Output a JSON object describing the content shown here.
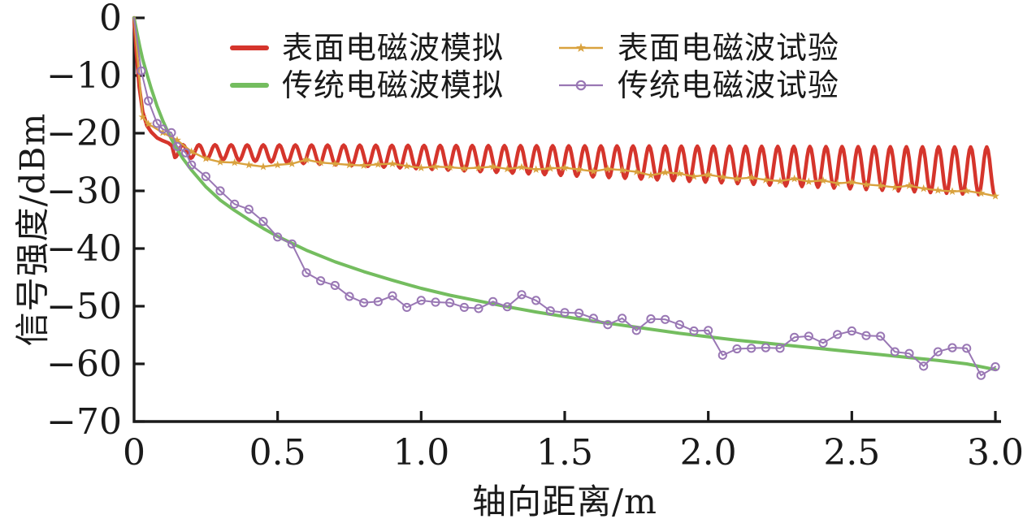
{
  "chart_data": {
    "type": "line",
    "title": "",
    "xlabel": "轴向距离/m",
    "ylabel": "信号强度/dBm",
    "xlim": [
      0,
      3.0
    ],
    "ylim": [
      -70,
      0
    ],
    "grid": false,
    "legend_position": "top-inside",
    "x_ticks": [
      "0",
      "0.5",
      "1.0",
      "1.5",
      "2.0",
      "2.5",
      "3.0"
    ],
    "x_tick_values": [
      0,
      0.5,
      1.0,
      1.5,
      2.0,
      2.5,
      3.0
    ],
    "y_ticks": [
      "0",
      "−10",
      "−20",
      "−30",
      "−40",
      "−50",
      "−60",
      "−70"
    ],
    "y_tick_values": [
      0,
      -10,
      -20,
      -30,
      -40,
      -50,
      -60,
      -70
    ],
    "axis_color": "#1a1a1a",
    "text_color": "#1a1a1a",
    "series": [
      {
        "name": "表面电磁波模拟",
        "color": "#d5352c",
        "type": "wave-line",
        "line_width": 4.5,
        "lead_in": [
          [
            0,
            0
          ],
          [
            0.008,
            -6
          ],
          [
            0.018,
            -12
          ],
          [
            0.03,
            -16.3
          ],
          [
            0.045,
            -18.7
          ],
          [
            0.06,
            -19.8
          ],
          [
            0.08,
            -20.8
          ],
          [
            0.1,
            -21.3
          ],
          [
            0.12,
            -21.7
          ],
          [
            0.132,
            -22.2
          ]
        ],
        "wave": {
          "x_start": 0.142,
          "x_end": 3.0,
          "period": 0.056,
          "first_peak_x": 0.17,
          "peak_start": -22.0,
          "peak_end": -22.4,
          "trough_start": -24.2,
          "trough_end": -30.8
        }
      },
      {
        "name": "传统电磁波模拟",
        "color": "#74bd5f",
        "type": "line",
        "line_width": 4,
        "points": [
          [
            0,
            0
          ],
          [
            0.01,
            -2.5
          ],
          [
            0.02,
            -5.0
          ],
          [
            0.03,
            -7.2
          ],
          [
            0.045,
            -9.8
          ],
          [
            0.06,
            -12.3
          ],
          [
            0.08,
            -15.3
          ],
          [
            0.1,
            -17.8
          ],
          [
            0.12,
            -20.0
          ],
          [
            0.14,
            -22.0
          ],
          [
            0.17,
            -24.4
          ],
          [
            0.2,
            -26.4
          ],
          [
            0.25,
            -29.3
          ],
          [
            0.3,
            -31.6
          ],
          [
            0.35,
            -33.4
          ],
          [
            0.4,
            -35.0
          ],
          [
            0.45,
            -36.5
          ],
          [
            0.5,
            -37.9
          ],
          [
            0.55,
            -39.1
          ],
          [
            0.6,
            -40.3
          ],
          [
            0.7,
            -42.3
          ],
          [
            0.8,
            -44.0
          ],
          [
            0.9,
            -45.5
          ],
          [
            1.0,
            -46.9
          ],
          [
            1.1,
            -48.1
          ],
          [
            1.2,
            -49.1
          ],
          [
            1.3,
            -50.1
          ],
          [
            1.4,
            -51.0
          ],
          [
            1.5,
            -51.8
          ],
          [
            1.6,
            -52.6
          ],
          [
            1.7,
            -53.3
          ],
          [
            1.8,
            -54.0
          ],
          [
            1.9,
            -54.7
          ],
          [
            2.0,
            -55.3
          ],
          [
            2.1,
            -55.9
          ],
          [
            2.2,
            -56.4
          ],
          [
            2.3,
            -56.9
          ],
          [
            2.4,
            -57.4
          ],
          [
            2.5,
            -57.9
          ],
          [
            2.6,
            -58.4
          ],
          [
            2.7,
            -58.9
          ],
          [
            2.8,
            -59.4
          ],
          [
            2.9,
            -60.0
          ],
          [
            3.0,
            -61.0
          ]
        ]
      },
      {
        "name": "表面电磁波试验",
        "color": "#d9a23e",
        "type": "line-marker",
        "marker": "star",
        "line_width": 2.4,
        "points": [
          [
            0,
            0
          ],
          [
            0.03,
            -17.2
          ],
          [
            0.05,
            -18.4
          ],
          [
            0.1,
            -19.9
          ],
          [
            0.15,
            -21.2
          ],
          [
            0.2,
            -23.2
          ],
          [
            0.25,
            -24.4
          ],
          [
            0.3,
            -25.0
          ],
          [
            0.35,
            -25.1
          ],
          [
            0.4,
            -25.5
          ],
          [
            0.45,
            -25.8
          ],
          [
            0.5,
            -25.5
          ],
          [
            0.55,
            -25.3
          ],
          [
            0.6,
            -24.6
          ],
          [
            0.65,
            -25.1
          ],
          [
            0.7,
            -25.3
          ],
          [
            0.75,
            -25.5
          ],
          [
            0.8,
            -25.6
          ],
          [
            0.85,
            -25.4
          ],
          [
            0.9,
            -25.3
          ],
          [
            0.95,
            -25.7
          ],
          [
            1.0,
            -26.0
          ],
          [
            1.05,
            -25.8
          ],
          [
            1.1,
            -25.9
          ],
          [
            1.15,
            -26.1
          ],
          [
            1.2,
            -26.0
          ],
          [
            1.25,
            -25.8
          ],
          [
            1.3,
            -26.2
          ],
          [
            1.35,
            -25.9
          ],
          [
            1.4,
            -26.3
          ],
          [
            1.45,
            -26.1
          ],
          [
            1.5,
            -26.0
          ],
          [
            1.55,
            -26.3
          ],
          [
            1.6,
            -26.6
          ],
          [
            1.65,
            -26.2
          ],
          [
            1.7,
            -26.4
          ],
          [
            1.75,
            -26.7
          ],
          [
            1.8,
            -27.3
          ],
          [
            1.85,
            -26.8
          ],
          [
            1.9,
            -27.0
          ],
          [
            1.95,
            -27.5
          ],
          [
            2.0,
            -27.2
          ],
          [
            2.05,
            -27.6
          ],
          [
            2.1,
            -27.9
          ],
          [
            2.15,
            -27.7
          ],
          [
            2.2,
            -28.1
          ],
          [
            2.25,
            -28.3
          ],
          [
            2.3,
            -27.9
          ],
          [
            2.35,
            -28.4
          ],
          [
            2.4,
            -28.2
          ],
          [
            2.45,
            -28.7
          ],
          [
            2.5,
            -28.5
          ],
          [
            2.55,
            -28.9
          ],
          [
            2.6,
            -29.1
          ],
          [
            2.65,
            -29.4
          ],
          [
            2.7,
            -29.1
          ],
          [
            2.75,
            -29.6
          ],
          [
            2.8,
            -29.9
          ],
          [
            2.85,
            -30.1
          ],
          [
            2.9,
            -30.0
          ],
          [
            2.95,
            -30.4
          ],
          [
            3.0,
            -30.9
          ]
        ]
      },
      {
        "name": "传统电磁波试验",
        "color": "#9977b4",
        "type": "line-marker",
        "marker": "open-circle",
        "line_width": 2,
        "points": [
          [
            0,
            0
          ],
          [
            0.025,
            -9.2
          ],
          [
            0.05,
            -14.4
          ],
          [
            0.08,
            -18.3
          ],
          [
            0.1,
            -19.3
          ],
          [
            0.13,
            -19.9
          ],
          [
            0.15,
            -22.3
          ],
          [
            0.18,
            -23.4
          ],
          [
            0.2,
            -25.5
          ],
          [
            0.25,
            -27.5
          ],
          [
            0.3,
            -30.0
          ],
          [
            0.35,
            -32.3
          ],
          [
            0.4,
            -33.2
          ],
          [
            0.45,
            -35.3
          ],
          [
            0.5,
            -38.0
          ],
          [
            0.55,
            -39.2
          ],
          [
            0.6,
            -44.2
          ],
          [
            0.65,
            -45.6
          ],
          [
            0.7,
            -46.4
          ],
          [
            0.75,
            -48.3
          ],
          [
            0.8,
            -49.4
          ],
          [
            0.85,
            -49.2
          ],
          [
            0.9,
            -48.2
          ],
          [
            0.95,
            -50.2
          ],
          [
            1.0,
            -49.0
          ],
          [
            1.05,
            -49.3
          ],
          [
            1.1,
            -49.4
          ],
          [
            1.15,
            -50.2
          ],
          [
            1.2,
            -50.4
          ],
          [
            1.25,
            -49.2
          ],
          [
            1.3,
            -50.1
          ],
          [
            1.35,
            -48.0
          ],
          [
            1.4,
            -49.0
          ],
          [
            1.45,
            -50.8
          ],
          [
            1.5,
            -51.1
          ],
          [
            1.55,
            -51.2
          ],
          [
            1.6,
            -52.1
          ],
          [
            1.65,
            -53.2
          ],
          [
            1.7,
            -52.1
          ],
          [
            1.75,
            -54.2
          ],
          [
            1.8,
            -52.2
          ],
          [
            1.85,
            -52.3
          ],
          [
            1.9,
            -53.2
          ],
          [
            1.95,
            -54.3
          ],
          [
            2.0,
            -54.2
          ],
          [
            2.05,
            -58.5
          ],
          [
            2.1,
            -57.4
          ],
          [
            2.15,
            -57.3
          ],
          [
            2.2,
            -57.2
          ],
          [
            2.25,
            -57.3
          ],
          [
            2.3,
            -55.4
          ],
          [
            2.35,
            -55.2
          ],
          [
            2.4,
            -56.4
          ],
          [
            2.45,
            -54.9
          ],
          [
            2.5,
            -54.3
          ],
          [
            2.55,
            -55.1
          ],
          [
            2.6,
            -55.2
          ],
          [
            2.65,
            -57.9
          ],
          [
            2.7,
            -58.2
          ],
          [
            2.75,
            -60.4
          ],
          [
            2.8,
            -57.9
          ],
          [
            2.85,
            -57.2
          ],
          [
            2.9,
            -57.3
          ],
          [
            2.95,
            -62.0
          ],
          [
            3.0,
            -60.5
          ]
        ]
      }
    ]
  }
}
